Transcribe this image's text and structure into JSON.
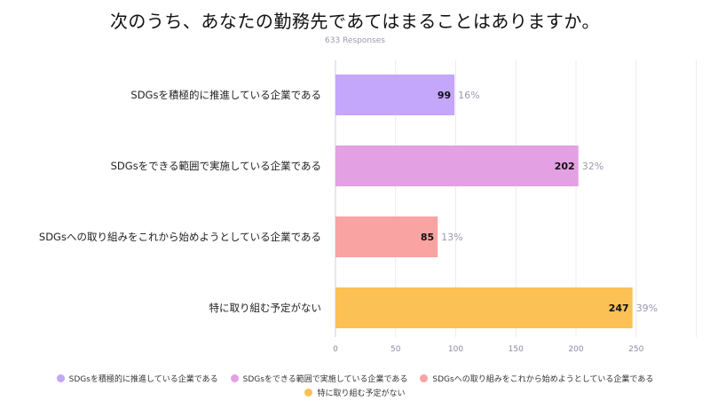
{
  "header": {
    "title": "次のうち、あなたの勤務先であてはまることはありますか。",
    "subtitle": "633 Responses"
  },
  "chart_data": {
    "type": "bar",
    "orientation": "horizontal",
    "categories": [
      "SDGsを積極的に推進している企業である",
      "SDGsをできる範囲で実施している企業である",
      "SDGsへの取り組みをこれから始めようとしている企業である",
      "特に取り組む予定がない"
    ],
    "values": [
      99,
      202,
      85,
      247
    ],
    "percentages": [
      "16%",
      "32%",
      "13%",
      "39%"
    ],
    "colors": [
      "#c4a6fb",
      "#e3a0e3",
      "#f9a3a3",
      "#fbc155"
    ],
    "xlim": [
      0,
      300
    ],
    "xticks": [
      "0",
      "50",
      "100",
      "150",
      "200",
      "250"
    ],
    "grid": true,
    "legend_position": "bottom"
  }
}
